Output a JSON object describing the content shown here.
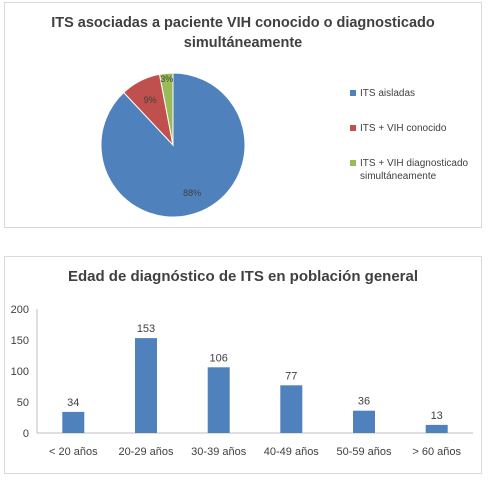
{
  "pie_panel": {
    "title": "ITS asociadas a paciente VIH conocido o diagnosticado simultáneamente"
  },
  "bar_panel": {
    "title": "Edad de diagnóstico de ITS en población general"
  },
  "chart_data": [
    {
      "type": "pie",
      "title": "ITS asociadas a paciente VIH conocido o diagnosticado simultáneamente",
      "categories": [
        "ITS aisladas",
        "ITS + VIH conocido",
        "ITS + VIH diagnosticado simultáneamente"
      ],
      "values": [
        88,
        9,
        3
      ],
      "value_labels": [
        "88%",
        "9%",
        "3%"
      ],
      "unit": "%",
      "colors": [
        "#4f81bd",
        "#c0504d",
        "#9bbb59"
      ],
      "legend_position": "right"
    },
    {
      "type": "bar",
      "title": "Edad de diagnóstico de ITS en población general",
      "categories": [
        "< 20 años",
        "20-29 años",
        "30-39 años",
        "40-49 años",
        "50-59 años",
        "> 60 años"
      ],
      "values": [
        34,
        153,
        106,
        77,
        36,
        13
      ],
      "ylim": [
        0,
        200
      ],
      "yticks": [
        0,
        50,
        100,
        150,
        200
      ],
      "xlabel": "",
      "ylabel": "",
      "bar_color": "#4f81bd",
      "data_labels": true,
      "grid": false
    }
  ]
}
